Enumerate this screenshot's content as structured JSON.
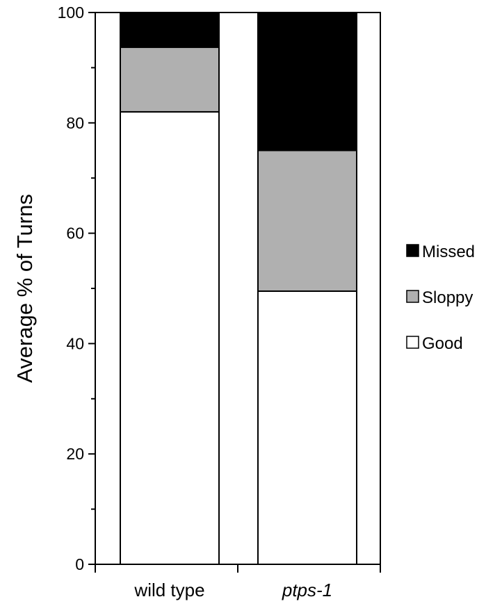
{
  "chart_data": {
    "type": "bar",
    "stacked": true,
    "categories": [
      "wild type",
      "ptps-1"
    ],
    "category_styles": [
      "normal",
      "italic"
    ],
    "series": [
      {
        "name": "Good",
        "values": [
          82,
          49.5
        ],
        "color": "#ffffff"
      },
      {
        "name": "Sloppy",
        "values": [
          11.7,
          25.5
        ],
        "color": "#b0b0b0"
      },
      {
        "name": "Missed",
        "values": [
          6.3,
          25
        ],
        "color": "#000000"
      }
    ],
    "title": "",
    "xlabel": "",
    "ylabel": "Average % of Turns",
    "ylim": [
      0,
      100
    ],
    "yticks": [
      0,
      20,
      40,
      60,
      80,
      100
    ],
    "yminor_step": 10,
    "grid": false,
    "legend_position": "right",
    "legend_order": [
      "Missed",
      "Sloppy",
      "Good"
    ]
  }
}
